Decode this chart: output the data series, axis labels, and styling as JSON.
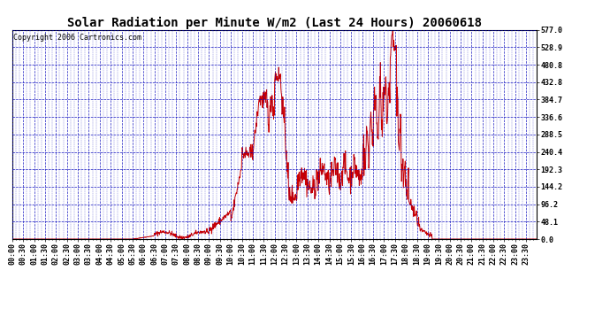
{
  "title": "Solar Radiation per Minute W/m2 (Last 24 Hours) 20060618",
  "copyright_text": "Copyright 2006 Cartronics.com",
  "line_color": "#cc0000",
  "background_color": "#ffffff",
  "grid_color": "#0000bb",
  "yticks": [
    0.0,
    48.1,
    96.2,
    144.2,
    192.3,
    240.4,
    288.5,
    336.6,
    384.7,
    432.8,
    480.8,
    528.9,
    577.0
  ],
  "ymax": 577.0,
  "ymin": 0.0,
  "xtick_labels": [
    "00:00",
    "00:30",
    "01:00",
    "01:30",
    "02:00",
    "02:30",
    "03:00",
    "03:30",
    "04:00",
    "04:30",
    "05:00",
    "05:30",
    "06:00",
    "06:30",
    "07:00",
    "07:30",
    "08:00",
    "08:30",
    "09:00",
    "09:30",
    "10:00",
    "10:30",
    "11:00",
    "11:30",
    "12:00",
    "12:30",
    "13:00",
    "13:30",
    "14:00",
    "14:30",
    "15:00",
    "15:30",
    "16:00",
    "16:30",
    "17:00",
    "17:30",
    "18:00",
    "18:30",
    "19:00",
    "19:30",
    "20:00",
    "20:30",
    "21:00",
    "21:30",
    "22:00",
    "22:30",
    "23:00",
    "23:30"
  ],
  "title_fontsize": 10,
  "copyright_fontsize": 6,
  "tick_label_fontsize": 6
}
